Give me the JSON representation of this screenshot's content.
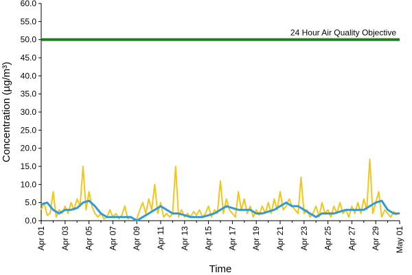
{
  "chart_data": {
    "type": "line",
    "xlabel": "Time",
    "ylabel": "Concentration (µg/m³)",
    "ylim": [
      0,
      60
    ],
    "y_ticks": [
      "0.0",
      "5.0",
      "10.0",
      "15.0",
      "20.0",
      "25.0",
      "30.0",
      "35.0",
      "40.0",
      "45.0",
      "50.0",
      "55.0",
      "60.0"
    ],
    "x_range": [
      "2014-04-01",
      "2014-05-01"
    ],
    "x_tick_labels": [
      "Apr 01",
      "Apr 03",
      "Apr 05",
      "Apr 07",
      "Apr 09",
      "Apr 11",
      "Apr 13",
      "Apr 15",
      "Apr 17",
      "Apr 19",
      "Apr 21",
      "Apr 23",
      "Apr 25",
      "Apr 27",
      "Apr 29",
      "May 01"
    ],
    "grid": false,
    "annotations": [
      {
        "text": "24 Hour Air Quality Objective",
        "y": 50
      }
    ],
    "objective": {
      "value": 50,
      "color": "#1f7a1f"
    },
    "series": [
      {
        "color": "#f2c519",
        "values": [
          [
            "2014-04-01 00:00",
            3
          ],
          [
            "2014-04-01 06:00",
            5
          ],
          [
            "2014-04-01 12:00",
            1.5
          ],
          [
            "2014-04-01 18:00",
            2
          ],
          [
            "2014-04-02 00:00",
            8
          ],
          [
            "2014-04-02 06:00",
            1
          ],
          [
            "2014-04-02 12:00",
            3
          ],
          [
            "2014-04-02 18:00",
            2
          ],
          [
            "2014-04-03 00:00",
            4
          ],
          [
            "2014-04-03 06:00",
            2
          ],
          [
            "2014-04-03 12:00",
            5
          ],
          [
            "2014-04-03 18:00",
            3
          ],
          [
            "2014-04-04 00:00",
            6
          ],
          [
            "2014-04-04 06:00",
            4
          ],
          [
            "2014-04-04 12:00",
            15
          ],
          [
            "2014-04-04 18:00",
            3
          ],
          [
            "2014-04-05 00:00",
            8
          ],
          [
            "2014-04-05 06:00",
            4
          ],
          [
            "2014-04-05 12:00",
            2
          ],
          [
            "2014-04-05 18:00",
            1
          ],
          [
            "2014-04-06 00:00",
            2
          ],
          [
            "2014-04-06 06:00",
            0.5
          ],
          [
            "2014-04-06 12:00",
            1
          ],
          [
            "2014-04-06 18:00",
            3
          ],
          [
            "2014-04-07 00:00",
            1
          ],
          [
            "2014-04-07 06:00",
            2
          ],
          [
            "2014-04-07 12:00",
            0.5
          ],
          [
            "2014-04-07 18:00",
            1.5
          ],
          [
            "2014-04-08 00:00",
            4
          ],
          [
            "2014-04-08 06:00",
            0.5
          ],
          [
            "2014-04-08 12:00",
            1
          ],
          [
            "2014-04-08 18:00",
            0.5
          ],
          [
            "2014-04-09 00:00",
            0.5
          ],
          [
            "2014-04-09 06:00",
            3
          ],
          [
            "2014-04-09 12:00",
            5
          ],
          [
            "2014-04-09 18:00",
            2
          ],
          [
            "2014-04-10 00:00",
            6
          ],
          [
            "2014-04-10 06:00",
            3
          ],
          [
            "2014-04-10 12:00",
            10
          ],
          [
            "2014-04-10 18:00",
            2
          ],
          [
            "2014-04-11 00:00",
            5
          ],
          [
            "2014-04-11 06:00",
            1
          ],
          [
            "2014-04-11 12:00",
            2
          ],
          [
            "2014-04-11 18:00",
            1
          ],
          [
            "2014-04-12 00:00",
            2
          ],
          [
            "2014-04-12 06:00",
            15
          ],
          [
            "2014-04-12 12:00",
            1
          ],
          [
            "2014-04-12 18:00",
            3
          ],
          [
            "2014-04-13 00:00",
            1
          ],
          [
            "2014-04-13 06:00",
            2
          ],
          [
            "2014-04-13 12:00",
            1
          ],
          [
            "2014-04-13 18:00",
            2.5
          ],
          [
            "2014-04-14 00:00",
            1.5
          ],
          [
            "2014-04-14 06:00",
            3
          ],
          [
            "2014-04-14 12:00",
            1
          ],
          [
            "2014-04-14 18:00",
            2
          ],
          [
            "2014-04-15 00:00",
            4
          ],
          [
            "2014-04-15 06:00",
            1
          ],
          [
            "2014-04-15 12:00",
            3
          ],
          [
            "2014-04-15 18:00",
            2
          ],
          [
            "2014-04-16 00:00",
            11
          ],
          [
            "2014-04-16 06:00",
            2
          ],
          [
            "2014-04-16 12:00",
            6
          ],
          [
            "2014-04-16 18:00",
            3
          ],
          [
            "2014-04-17 00:00",
            2
          ],
          [
            "2014-04-17 06:00",
            1
          ],
          [
            "2014-04-17 12:00",
            8
          ],
          [
            "2014-04-17 18:00",
            3
          ],
          [
            "2014-04-18 00:00",
            6
          ],
          [
            "2014-04-18 06:00",
            2
          ],
          [
            "2014-04-18 12:00",
            4
          ],
          [
            "2014-04-18 18:00",
            1
          ],
          [
            "2014-04-19 00:00",
            3
          ],
          [
            "2014-04-19 06:00",
            1.5
          ],
          [
            "2014-04-19 12:00",
            4
          ],
          [
            "2014-04-19 18:00",
            2
          ],
          [
            "2014-04-20 00:00",
            5
          ],
          [
            "2014-04-20 06:00",
            2
          ],
          [
            "2014-04-20 12:00",
            6
          ],
          [
            "2014-04-20 18:00",
            3
          ],
          [
            "2014-04-21 00:00",
            8
          ],
          [
            "2014-04-21 06:00",
            3
          ],
          [
            "2014-04-21 12:00",
            4
          ],
          [
            "2014-04-21 18:00",
            6
          ],
          [
            "2014-04-22 00:00",
            4
          ],
          [
            "2014-04-22 06:00",
            3
          ],
          [
            "2014-04-22 12:00",
            2
          ],
          [
            "2014-04-22 18:00",
            12
          ],
          [
            "2014-04-23 00:00",
            2
          ],
          [
            "2014-04-23 06:00",
            3
          ],
          [
            "2014-04-23 12:00",
            1
          ],
          [
            "2014-04-23 18:00",
            2
          ],
          [
            "2014-04-24 00:00",
            4
          ],
          [
            "2014-04-24 06:00",
            1
          ],
          [
            "2014-04-24 12:00",
            5
          ],
          [
            "2014-04-24 18:00",
            2
          ],
          [
            "2014-04-25 00:00",
            3
          ],
          [
            "2014-04-25 06:00",
            1
          ],
          [
            "2014-04-25 12:00",
            4
          ],
          [
            "2014-04-25 18:00",
            2
          ],
          [
            "2014-04-26 00:00",
            5
          ],
          [
            "2014-04-26 06:00",
            2
          ],
          [
            "2014-04-26 12:00",
            3
          ],
          [
            "2014-04-26 18:00",
            1
          ],
          [
            "2014-04-27 00:00",
            4
          ],
          [
            "2014-04-27 06:00",
            2
          ],
          [
            "2014-04-27 12:00",
            5
          ],
          [
            "2014-04-27 18:00",
            2
          ],
          [
            "2014-04-28 00:00",
            6
          ],
          [
            "2014-04-28 06:00",
            3
          ],
          [
            "2014-04-28 12:00",
            17
          ],
          [
            "2014-04-28 18:00",
            2
          ],
          [
            "2014-04-29 00:00",
            5
          ],
          [
            "2014-04-29 06:00",
            8
          ],
          [
            "2014-04-29 12:00",
            1
          ],
          [
            "2014-04-29 18:00",
            3
          ],
          [
            "2014-04-30 00:00",
            2
          ],
          [
            "2014-04-30 06:00",
            1
          ],
          [
            "2014-04-30 12:00",
            2.5
          ],
          [
            "2014-04-30 18:00",
            1.5
          ]
        ]
      },
      {
        "color": "#2e9bd6",
        "values": [
          [
            "2014-04-01 00:00",
            4.5
          ],
          [
            "2014-04-01 12:00",
            5
          ],
          [
            "2014-04-02 00:00",
            3
          ],
          [
            "2014-04-02 12:00",
            2
          ],
          [
            "2014-04-03 00:00",
            3
          ],
          [
            "2014-04-03 12:00",
            3
          ],
          [
            "2014-04-04 00:00",
            3.5
          ],
          [
            "2014-04-04 12:00",
            5
          ],
          [
            "2014-04-05 00:00",
            5.5
          ],
          [
            "2014-04-05 12:00",
            4
          ],
          [
            "2014-04-06 00:00",
            2
          ],
          [
            "2014-04-06 12:00",
            1
          ],
          [
            "2014-04-07 00:00",
            1
          ],
          [
            "2014-04-07 12:00",
            1
          ],
          [
            "2014-04-08 00:00",
            1
          ],
          [
            "2014-04-08 12:00",
            1
          ],
          [
            "2014-04-09 00:00",
            0
          ],
          [
            "2014-04-09 12:00",
            1
          ],
          [
            "2014-04-10 00:00",
            2
          ],
          [
            "2014-04-10 12:00",
            3
          ],
          [
            "2014-04-11 00:00",
            4
          ],
          [
            "2014-04-11 12:00",
            3
          ],
          [
            "2014-04-12 00:00",
            2
          ],
          [
            "2014-04-12 12:00",
            2
          ],
          [
            "2014-04-13 00:00",
            1.5
          ],
          [
            "2014-04-13 12:00",
            1
          ],
          [
            "2014-04-14 00:00",
            1
          ],
          [
            "2014-04-14 12:00",
            1
          ],
          [
            "2014-04-15 00:00",
            1.5
          ],
          [
            "2014-04-15 12:00",
            2
          ],
          [
            "2014-04-16 00:00",
            3
          ],
          [
            "2014-04-16 12:00",
            4
          ],
          [
            "2014-04-17 00:00",
            3.5
          ],
          [
            "2014-04-17 12:00",
            3
          ],
          [
            "2014-04-18 00:00",
            3
          ],
          [
            "2014-04-18 12:00",
            3
          ],
          [
            "2014-04-19 00:00",
            2
          ],
          [
            "2014-04-19 12:00",
            2
          ],
          [
            "2014-04-20 00:00",
            2.5
          ],
          [
            "2014-04-20 12:00",
            3
          ],
          [
            "2014-04-21 00:00",
            4
          ],
          [
            "2014-04-21 12:00",
            5
          ],
          [
            "2014-04-22 00:00",
            4
          ],
          [
            "2014-04-22 12:00",
            4
          ],
          [
            "2014-04-23 00:00",
            3
          ],
          [
            "2014-04-23 12:00",
            2
          ],
          [
            "2014-04-24 00:00",
            1
          ],
          [
            "2014-04-24 12:00",
            2
          ],
          [
            "2014-04-25 00:00",
            2
          ],
          [
            "2014-04-25 12:00",
            2
          ],
          [
            "2014-04-26 00:00",
            2.5
          ],
          [
            "2014-04-26 12:00",
            3
          ],
          [
            "2014-04-27 00:00",
            3
          ],
          [
            "2014-04-27 12:00",
            3
          ],
          [
            "2014-04-28 00:00",
            3
          ],
          [
            "2014-04-28 12:00",
            4
          ],
          [
            "2014-04-29 00:00",
            5
          ],
          [
            "2014-04-29 12:00",
            5.5
          ],
          [
            "2014-04-30 00:00",
            3
          ],
          [
            "2014-04-30 12:00",
            2
          ],
          [
            "2014-05-01 00:00",
            2
          ]
        ]
      }
    ]
  }
}
